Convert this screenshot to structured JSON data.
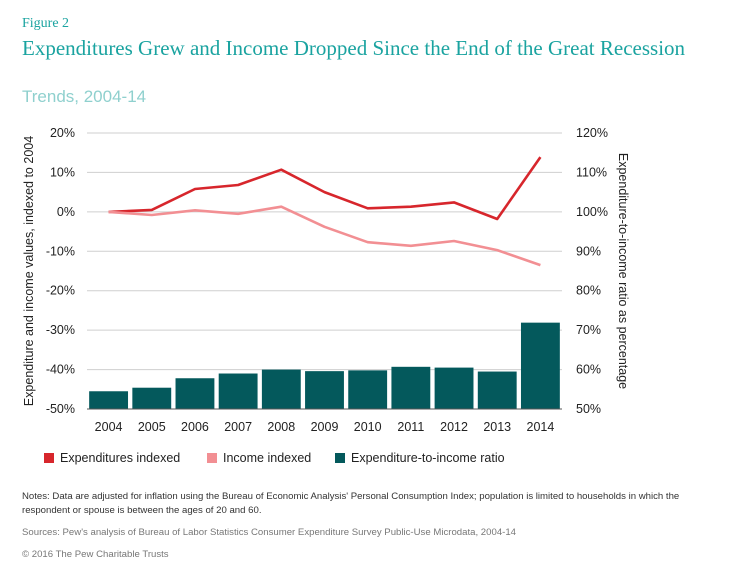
{
  "figure_label": "Figure 2",
  "title": "Expenditures Grew and Income Dropped Since the End of the Great Recession",
  "subtitle": "Trends, 2004-14",
  "chart_data": {
    "type": "bar+line",
    "categories": [
      "2004",
      "2005",
      "2006",
      "2007",
      "2008",
      "2009",
      "2010",
      "2011",
      "2012",
      "2013",
      "2014"
    ],
    "left_axis": {
      "label": "Expenditure and income values, indexed to 2004",
      "ticks": [
        "20%",
        "10%",
        "0%",
        "-10%",
        "-20%",
        "-30%",
        "-40%",
        "-50%"
      ],
      "tick_values": [
        20,
        10,
        0,
        -10,
        -20,
        -30,
        -40,
        -50
      ],
      "ylim": [
        -50,
        20
      ]
    },
    "right_axis": {
      "label": "Expenditure-to-income ratio as percentage",
      "ticks": [
        "120%",
        "110%",
        "100%",
        "90%",
        "80%",
        "70%",
        "60%",
        "50%"
      ],
      "tick_values": [
        120,
        110,
        100,
        90,
        80,
        70,
        60,
        50
      ],
      "ylim": [
        50,
        120
      ]
    },
    "series": [
      {
        "name": "Expenditures indexed",
        "type": "line",
        "axis": "left",
        "color": "#d7262c",
        "values": [
          0,
          0.5,
          5.8,
          6.8,
          10.7,
          5.0,
          0.9,
          1.3,
          2.4,
          -1.8,
          13.9
        ]
      },
      {
        "name": "Income indexed",
        "type": "line",
        "axis": "left",
        "color": "#f28f93",
        "values": [
          0,
          -0.8,
          0.4,
          -0.5,
          1.3,
          -3.8,
          -7.7,
          -8.6,
          -7.4,
          -9.7,
          -13.5
        ]
      },
      {
        "name": "Expenditure-to-income ratio",
        "type": "bar",
        "axis": "right",
        "color": "#04595c",
        "values": [
          54.5,
          55.4,
          57.8,
          59.0,
          60.0,
          59.6,
          59.8,
          60.7,
          60.5,
          59.5,
          71.9
        ]
      }
    ],
    "legend_position": "bottom"
  },
  "notes": "Notes: Data are adjusted for inflation using the Bureau of Economic Analysis' Personal Consumption Index; population is limited to households in which the respondent or spouse is between the ages of 20 and 60.",
  "sources": "Sources: Pew's analysis of Bureau of Labor Statistics Consumer Expenditure Survey Public-Use Microdata, 2004-14",
  "copyright": "© 2016 The Pew Charitable Trusts"
}
